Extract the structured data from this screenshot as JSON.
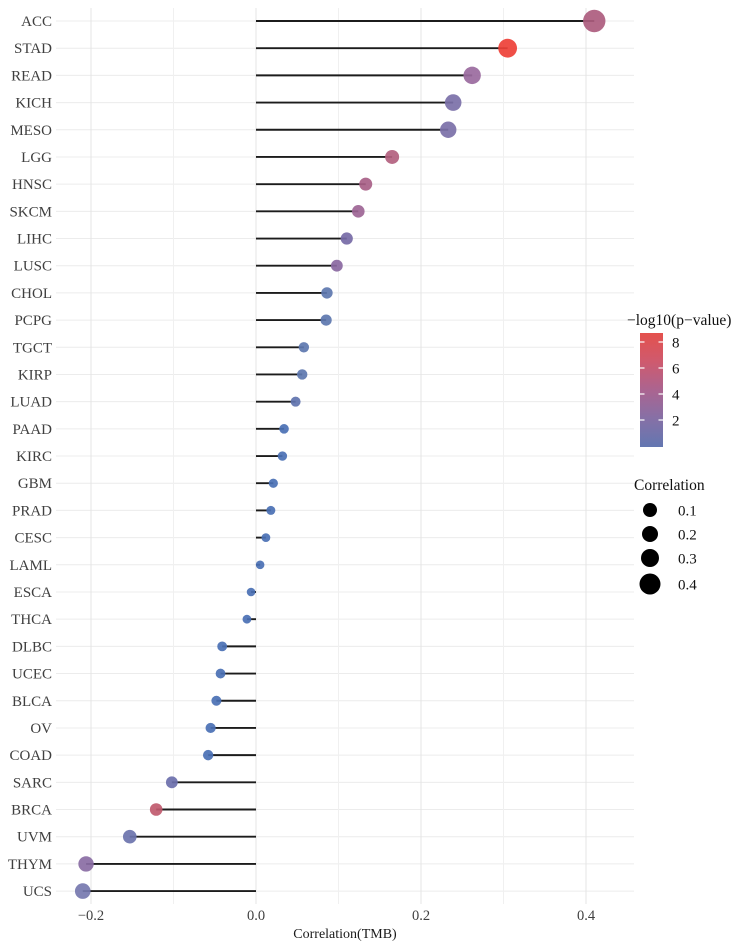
{
  "chart_data": {
    "type": "scatter",
    "variant": "lollipop",
    "orientation": "horizontal",
    "title": "",
    "xlabel": "Correlation(TMB)",
    "ylabel": "",
    "xlim": [
      -0.245,
      0.465
    ],
    "xticks": {
      "major_values": [
        -0.2,
        0.0,
        0.2,
        0.4
      ],
      "major_labels": [
        "−0.2",
        "0.0",
        "0.2",
        "0.4"
      ],
      "minor_values": [
        -0.1,
        0.1,
        0.3
      ]
    },
    "grid": "on",
    "stem_baseline": 0.0,
    "points": [
      {
        "label": "ACC",
        "correlation": 0.41,
        "neglog10_pvalue_est": 5.5,
        "color": "#ad5c7e"
      },
      {
        "label": "STAD",
        "correlation": 0.305,
        "neglog10_pvalue_est": 8.5,
        "color": "#ee4037"
      },
      {
        "label": "READ",
        "correlation": 0.262,
        "neglog10_pvalue_est": 4.5,
        "color": "#9a6a9e"
      },
      {
        "label": "KICH",
        "correlation": 0.239,
        "neglog10_pvalue_est": 3.0,
        "color": "#7b70a8"
      },
      {
        "label": "MESO",
        "correlation": 0.233,
        "neglog10_pvalue_est": 3.0,
        "color": "#7b70a8"
      },
      {
        "label": "LGG",
        "correlation": 0.165,
        "neglog10_pvalue_est": 5.5,
        "color": "#b3617f"
      },
      {
        "label": "HNSC",
        "correlation": 0.133,
        "neglog10_pvalue_est": 5.0,
        "color": "#a85f87"
      },
      {
        "label": "SKCM",
        "correlation": 0.124,
        "neglog10_pvalue_est": 4.5,
        "color": "#9d6595"
      },
      {
        "label": "LIHC",
        "correlation": 0.11,
        "neglog10_pvalue_est": 3.0,
        "color": "#766aa6"
      },
      {
        "label": "LUSC",
        "correlation": 0.098,
        "neglog10_pvalue_est": 4.0,
        "color": "#8a68a1"
      },
      {
        "label": "CHOL",
        "correlation": 0.086,
        "neglog10_pvalue_est": 2.0,
        "color": "#5d77af"
      },
      {
        "label": "PCPG",
        "correlation": 0.085,
        "neglog10_pvalue_est": 2.0,
        "color": "#5d77af"
      },
      {
        "label": "TGCT",
        "correlation": 0.058,
        "neglog10_pvalue_est": 2.0,
        "color": "#5d77af"
      },
      {
        "label": "KIRP",
        "correlation": 0.056,
        "neglog10_pvalue_est": 2.0,
        "color": "#5d77af"
      },
      {
        "label": "LUAD",
        "correlation": 0.048,
        "neglog10_pvalue_est": 2.0,
        "color": "#6073ae"
      },
      {
        "label": "PAAD",
        "correlation": 0.034,
        "neglog10_pvalue_est": 1.0,
        "color": "#4a70b4"
      },
      {
        "label": "KIRC",
        "correlation": 0.032,
        "neglog10_pvalue_est": 1.0,
        "color": "#4a70b4"
      },
      {
        "label": "GBM",
        "correlation": 0.021,
        "neglog10_pvalue_est": 1.0,
        "color": "#4a70b4"
      },
      {
        "label": "PRAD",
        "correlation": 0.018,
        "neglog10_pvalue_est": 1.0,
        "color": "#4a70b4"
      },
      {
        "label": "CESC",
        "correlation": 0.012,
        "neglog10_pvalue_est": 1.0,
        "color": "#4a70b4"
      },
      {
        "label": "LAML",
        "correlation": 0.005,
        "neglog10_pvalue_est": 1.0,
        "color": "#4a70b4"
      },
      {
        "label": "ESCA",
        "correlation": -0.006,
        "neglog10_pvalue_est": 1.0,
        "color": "#4a70b4"
      },
      {
        "label": "THCA",
        "correlation": -0.011,
        "neglog10_pvalue_est": 1.0,
        "color": "#4a70b4"
      },
      {
        "label": "DLBC",
        "correlation": -0.041,
        "neglog10_pvalue_est": 1.0,
        "color": "#4a70b4"
      },
      {
        "label": "UCEC",
        "correlation": -0.043,
        "neglog10_pvalue_est": 1.0,
        "color": "#4a70b4"
      },
      {
        "label": "BLCA",
        "correlation": -0.048,
        "neglog10_pvalue_est": 1.0,
        "color": "#4a70b4"
      },
      {
        "label": "OV",
        "correlation": -0.055,
        "neglog10_pvalue_est": 1.0,
        "color": "#4a70b4"
      },
      {
        "label": "COAD",
        "correlation": -0.058,
        "neglog10_pvalue_est": 1.0,
        "color": "#4a70b4"
      },
      {
        "label": "SARC",
        "correlation": -0.102,
        "neglog10_pvalue_est": 2.5,
        "color": "#6b6fab"
      },
      {
        "label": "BRCA",
        "correlation": -0.121,
        "neglog10_pvalue_est": 6.5,
        "color": "#c05a6e"
      },
      {
        "label": "UVM",
        "correlation": -0.153,
        "neglog10_pvalue_est": 2.5,
        "color": "#6b73ac"
      },
      {
        "label": "THYM",
        "correlation": -0.206,
        "neglog10_pvalue_est": 4.0,
        "color": "#8a6da4"
      },
      {
        "label": "UCS",
        "correlation": -0.21,
        "neglog10_pvalue_est": 3.0,
        "color": "#7678af"
      }
    ],
    "legend_position": "right",
    "color_legend": {
      "title": "−log10(p−value)",
      "tick_labels": [
        "8",
        "6",
        "4",
        "2"
      ],
      "tick_values": [
        8,
        6,
        4,
        2
      ],
      "gradient_top_to_bottom": [
        "#e4514d",
        "#cf5a6e",
        "#ab6490",
        "#8670a6",
        "#6377b1"
      ]
    },
    "size_legend": {
      "title": "Correlation",
      "entries": [
        {
          "label": "0.1",
          "value": 0.1,
          "radius": 7
        },
        {
          "label": "0.2",
          "value": 0.2,
          "radius": 8
        },
        {
          "label": "0.3",
          "value": 0.3,
          "radius": 9
        },
        {
          "label": "0.4",
          "value": 0.4,
          "radius": 10.5
        }
      ],
      "dot_color": "#000000"
    },
    "colors": {
      "stem": "#1c1c1c",
      "grid_major": "#e4e4e4",
      "grid_minor": "#f0f0f0",
      "grid_row": "#ececec",
      "background": "#ffffff",
      "label_text": "#3f3f3f"
    }
  }
}
